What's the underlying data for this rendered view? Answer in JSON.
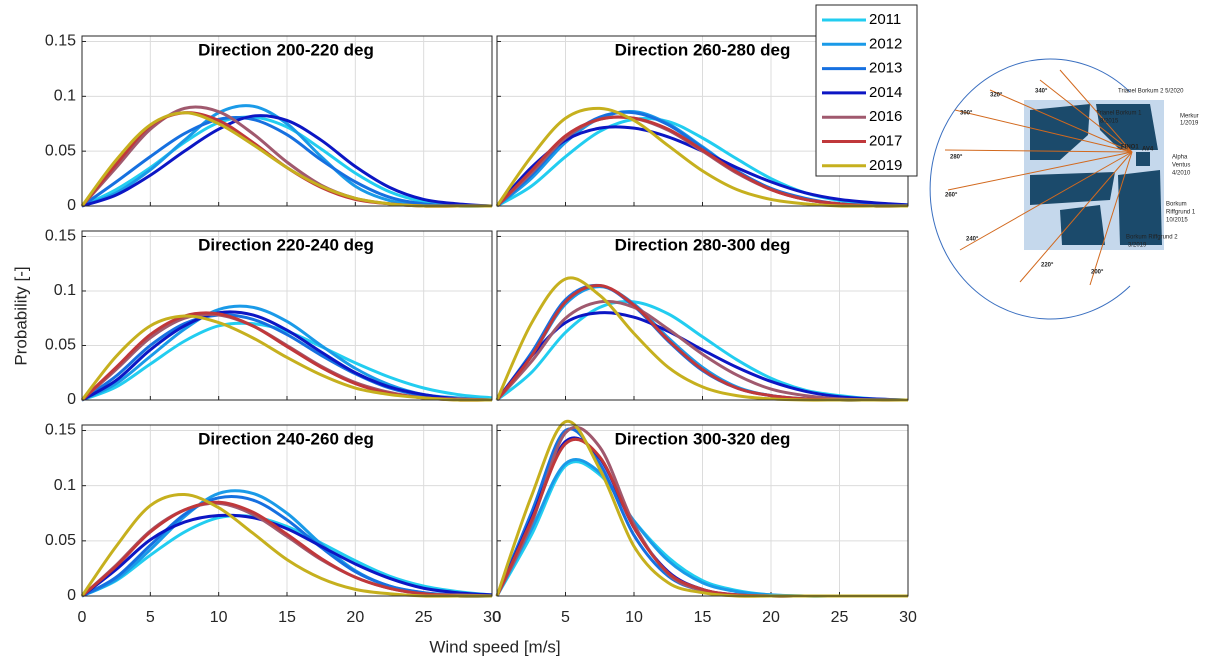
{
  "figure": {
    "ylabel": "Probability [-]",
    "xlabel": "Wind speed [m/s]"
  },
  "chart_data": [
    {
      "type": "line",
      "title": "Direction 200-220 deg",
      "x": [
        0,
        2.5,
        5,
        7.5,
        10,
        12.5,
        15,
        17.5,
        20,
        22.5,
        25,
        27.5,
        30
      ],
      "xlim": [
        0,
        30
      ],
      "xticks": [
        0,
        5,
        10,
        15,
        20,
        25,
        30
      ],
      "ylim": [
        0,
        0.155
      ],
      "yticks": [
        0,
        0.05,
        0.1,
        0.15
      ],
      "grid": true,
      "series": [
        {
          "name": "2011",
          "color": "#22cdf0",
          "values": [
            0,
            0.015,
            0.035,
            0.058,
            0.076,
            0.081,
            0.072,
            0.052,
            0.03,
            0.013,
            0.004,
            0.001,
            0
          ]
        },
        {
          "name": "2012",
          "color": "#1a9ae8",
          "values": [
            0,
            0.012,
            0.033,
            0.06,
            0.085,
            0.091,
            0.075,
            0.045,
            0.018,
            0.005,
            0.001,
            0,
            0
          ]
        },
        {
          "name": "2013",
          "color": "#1670e0",
          "values": [
            0,
            0.022,
            0.045,
            0.066,
            0.079,
            0.079,
            0.065,
            0.042,
            0.022,
            0.008,
            0.002,
            0,
            0
          ]
        },
        {
          "name": "2014",
          "color": "#0c16c4",
          "values": [
            0,
            0.01,
            0.028,
            0.05,
            0.07,
            0.082,
            0.078,
            0.06,
            0.036,
            0.017,
            0.006,
            0.002,
            0
          ]
        },
        {
          "name": "2016",
          "color": "#a0596e",
          "values": [
            0,
            0.035,
            0.07,
            0.089,
            0.086,
            0.066,
            0.04,
            0.019,
            0.007,
            0.002,
            0,
            0,
            0
          ]
        },
        {
          "name": "2017",
          "color": "#c0383b",
          "values": [
            0,
            0.038,
            0.073,
            0.085,
            0.078,
            0.058,
            0.035,
            0.017,
            0.006,
            0.002,
            0,
            0,
            0
          ]
        },
        {
          "name": "2019",
          "color": "#c6b01e",
          "values": [
            0,
            0.042,
            0.074,
            0.085,
            0.075,
            0.056,
            0.035,
            0.018,
            0.007,
            0.002,
            0,
            0,
            0
          ]
        }
      ]
    },
    {
      "type": "line",
      "title": "Direction 260-280 deg",
      "x": [
        0,
        2.5,
        5,
        7.5,
        10,
        12.5,
        15,
        17.5,
        20,
        22.5,
        25,
        27.5,
        30
      ],
      "xlim": [
        0,
        30
      ],
      "xticks": [
        0,
        5,
        10,
        15,
        20,
        25,
        30
      ],
      "ylim": [
        0,
        0.155
      ],
      "yticks": [
        0,
        0.05,
        0.1,
        0.15
      ],
      "grid": true,
      "series": [
        {
          "name": "2011",
          "color": "#22cdf0",
          "values": [
            0,
            0.018,
            0.045,
            0.068,
            0.079,
            0.077,
            0.062,
            0.043,
            0.025,
            0.012,
            0.005,
            0.002,
            0.001
          ]
        },
        {
          "name": "2012",
          "color": "#1a9ae8",
          "values": [
            0,
            0.025,
            0.058,
            0.08,
            0.086,
            0.075,
            0.054,
            0.032,
            0.016,
            0.006,
            0.002,
            0,
            0
          ]
        },
        {
          "name": "2013",
          "color": "#1670e0",
          "values": [
            0,
            0.028,
            0.061,
            0.081,
            0.085,
            0.074,
            0.053,
            0.032,
            0.016,
            0.007,
            0.002,
            0.001,
            0
          ]
        },
        {
          "name": "2014",
          "color": "#0c16c4",
          "values": [
            0,
            0.035,
            0.06,
            0.071,
            0.071,
            0.063,
            0.05,
            0.035,
            0.022,
            0.012,
            0.006,
            0.003,
            0.001
          ]
        },
        {
          "name": "2016",
          "color": "#a0596e",
          "values": [
            0,
            0.03,
            0.062,
            0.079,
            0.08,
            0.069,
            0.05,
            0.03,
            0.015,
            0.006,
            0.002,
            0,
            0
          ]
        },
        {
          "name": "2017",
          "color": "#c0383b",
          "values": [
            0,
            0.032,
            0.064,
            0.079,
            0.08,
            0.07,
            0.051,
            0.031,
            0.015,
            0.006,
            0.002,
            0,
            0
          ]
        },
        {
          "name": "2019",
          "color": "#c6b01e",
          "values": [
            0,
            0.045,
            0.08,
            0.089,
            0.078,
            0.055,
            0.032,
            0.015,
            0.006,
            0.002,
            0,
            0,
            0
          ]
        }
      ]
    },
    {
      "type": "line",
      "title": "Direction 220-240 deg",
      "x": [
        0,
        2.5,
        5,
        7.5,
        10,
        12.5,
        15,
        17.5,
        20,
        22.5,
        25,
        27.5,
        30
      ],
      "xlim": [
        0,
        30
      ],
      "xticks": [
        0,
        5,
        10,
        15,
        20,
        25,
        30
      ],
      "ylim": [
        0,
        0.155
      ],
      "yticks": [
        0,
        0.05,
        0.1,
        0.15
      ],
      "grid": true,
      "series": [
        {
          "name": "2011",
          "color": "#22cdf0",
          "values": [
            0,
            0.012,
            0.033,
            0.054,
            0.068,
            0.07,
            0.063,
            0.049,
            0.034,
            0.021,
            0.011,
            0.005,
            0.002
          ]
        },
        {
          "name": "2012",
          "color": "#1a9ae8",
          "values": [
            0,
            0.015,
            0.04,
            0.065,
            0.083,
            0.085,
            0.072,
            0.05,
            0.029,
            0.014,
            0.005,
            0.002,
            0
          ]
        },
        {
          "name": "2013",
          "color": "#1670e0",
          "values": [
            0,
            0.022,
            0.05,
            0.07,
            0.078,
            0.074,
            0.06,
            0.041,
            0.024,
            0.011,
            0.004,
            0.001,
            0
          ]
        },
        {
          "name": "2014",
          "color": "#0c16c4",
          "values": [
            0,
            0.018,
            0.046,
            0.068,
            0.08,
            0.078,
            0.064,
            0.044,
            0.025,
            0.012,
            0.005,
            0.001,
            0
          ]
        },
        {
          "name": "2016",
          "color": "#a0596e",
          "values": [
            0,
            0.028,
            0.057,
            0.075,
            0.078,
            0.068,
            0.05,
            0.031,
            0.016,
            0.007,
            0.002,
            0.001,
            0
          ]
        },
        {
          "name": "2017",
          "color": "#c0383b",
          "values": [
            0,
            0.03,
            0.06,
            0.077,
            0.079,
            0.068,
            0.049,
            0.03,
            0.015,
            0.006,
            0.002,
            0,
            0
          ]
        },
        {
          "name": "2019",
          "color": "#c6b01e",
          "values": [
            0,
            0.04,
            0.068,
            0.077,
            0.071,
            0.057,
            0.039,
            0.023,
            0.011,
            0.005,
            0.002,
            0,
            0
          ]
        }
      ]
    },
    {
      "type": "line",
      "title": "Direction 280-300 deg",
      "x": [
        0,
        2.5,
        5,
        7.5,
        10,
        12.5,
        15,
        17.5,
        20,
        22.5,
        25,
        27.5,
        30
      ],
      "xlim": [
        0,
        30
      ],
      "xticks": [
        0,
        5,
        10,
        15,
        20,
        25,
        30
      ],
      "ylim": [
        0,
        0.155
      ],
      "yticks": [
        0,
        0.05,
        0.1,
        0.15
      ],
      "grid": true,
      "series": [
        {
          "name": "2011",
          "color": "#22cdf0",
          "values": [
            0,
            0.025,
            0.062,
            0.085,
            0.09,
            0.079,
            0.058,
            0.037,
            0.02,
            0.009,
            0.004,
            0.001,
            0
          ]
        },
        {
          "name": "2012",
          "color": "#1a9ae8",
          "values": [
            0,
            0.04,
            0.088,
            0.104,
            0.088,
            0.057,
            0.03,
            0.012,
            0.004,
            0.001,
            0,
            0,
            0
          ]
        },
        {
          "name": "2013",
          "color": "#1670e0",
          "values": [
            0,
            0.043,
            0.092,
            0.105,
            0.086,
            0.054,
            0.027,
            0.011,
            0.004,
            0.001,
            0,
            0,
            0
          ]
        },
        {
          "name": "2014",
          "color": "#0c16c4",
          "values": [
            0,
            0.04,
            0.071,
            0.08,
            0.076,
            0.063,
            0.046,
            0.03,
            0.017,
            0.008,
            0.003,
            0.001,
            0
          ]
        },
        {
          "name": "2016",
          "color": "#a0596e",
          "values": [
            0,
            0.035,
            0.075,
            0.09,
            0.085,
            0.065,
            0.042,
            0.023,
            0.01,
            0.004,
            0.001,
            0,
            0
          ]
        },
        {
          "name": "2017",
          "color": "#c0383b",
          "values": [
            0,
            0.04,
            0.09,
            0.105,
            0.087,
            0.055,
            0.028,
            0.011,
            0.004,
            0.001,
            0,
            0,
            0
          ]
        },
        {
          "name": "2019",
          "color": "#c6b01e",
          "values": [
            0,
            0.07,
            0.111,
            0.096,
            0.061,
            0.03,
            0.012,
            0.004,
            0.001,
            0,
            0,
            0,
            0
          ]
        }
      ]
    },
    {
      "type": "line",
      "title": "Direction 240-260 deg",
      "x": [
        0,
        2.5,
        5,
        7.5,
        10,
        12.5,
        15,
        17.5,
        20,
        22.5,
        25,
        27.5,
        30
      ],
      "xlim": [
        0,
        30
      ],
      "xticks": [
        0,
        5,
        10,
        15,
        20,
        25,
        30
      ],
      "ylim": [
        0,
        0.155
      ],
      "yticks": [
        0,
        0.05,
        0.1,
        0.15
      ],
      "grid": true,
      "series": [
        {
          "name": "2011",
          "color": "#22cdf0",
          "values": [
            0,
            0.014,
            0.037,
            0.058,
            0.071,
            0.072,
            0.063,
            0.048,
            0.032,
            0.018,
            0.009,
            0.004,
            0.001
          ]
        },
        {
          "name": "2012",
          "color": "#1a9ae8",
          "values": [
            0,
            0.015,
            0.042,
            0.072,
            0.093,
            0.093,
            0.075,
            0.047,
            0.023,
            0.009,
            0.003,
            0.001,
            0
          ]
        },
        {
          "name": "2013",
          "color": "#1670e0",
          "values": [
            0,
            0.017,
            0.046,
            0.074,
            0.089,
            0.087,
            0.069,
            0.044,
            0.022,
            0.009,
            0.003,
            0,
            0
          ]
        },
        {
          "name": "2014",
          "color": "#0c16c4",
          "values": [
            0,
            0.024,
            0.051,
            0.067,
            0.073,
            0.071,
            0.061,
            0.045,
            0.029,
            0.016,
            0.007,
            0.003,
            0.001
          ]
        },
        {
          "name": "2016",
          "color": "#a0596e",
          "values": [
            0,
            0.028,
            0.059,
            0.078,
            0.084,
            0.074,
            0.054,
            0.033,
            0.017,
            0.007,
            0.002,
            0.001,
            0
          ]
        },
        {
          "name": "2017",
          "color": "#c0383b",
          "values": [
            0,
            0.027,
            0.058,
            0.078,
            0.085,
            0.076,
            0.056,
            0.034,
            0.017,
            0.007,
            0.002,
            0,
            0
          ]
        },
        {
          "name": "2019",
          "color": "#c6b01e",
          "values": [
            0,
            0.045,
            0.082,
            0.092,
            0.08,
            0.057,
            0.033,
            0.016,
            0.006,
            0.002,
            0,
            0,
            0
          ]
        }
      ]
    },
    {
      "type": "line",
      "title": "Direction 300-320 deg",
      "x": [
        0,
        2.5,
        5,
        7.5,
        10,
        12.5,
        15,
        17.5,
        20,
        22.5,
        25,
        27.5,
        30
      ],
      "xlim": [
        0,
        30
      ],
      "xticks": [
        0,
        5,
        10,
        15,
        20,
        25,
        30
      ],
      "ylim": [
        0,
        0.155
      ],
      "yticks": [
        0,
        0.05,
        0.1,
        0.15
      ],
      "grid": true,
      "series": [
        {
          "name": "2011",
          "color": "#22cdf0",
          "values": [
            0,
            0.055,
            0.118,
            0.11,
            0.068,
            0.035,
            0.014,
            0.005,
            0.001,
            0,
            0,
            0,
            0
          ]
        },
        {
          "name": "2012",
          "color": "#1a9ae8",
          "values": [
            0,
            0.06,
            0.12,
            0.112,
            0.068,
            0.032,
            0.012,
            0.004,
            0.001,
            0,
            0,
            0,
            0
          ]
        },
        {
          "name": "2013",
          "color": "#1670e0",
          "values": [
            0,
            0.075,
            0.15,
            0.12,
            0.055,
            0.018,
            0.005,
            0.001,
            0,
            0,
            0,
            0,
            0
          ]
        },
        {
          "name": "2014",
          "color": "#0c16c4",
          "values": [
            0,
            0.07,
            0.14,
            0.125,
            0.062,
            0.022,
            0.006,
            0.001,
            0,
            0,
            0,
            0,
            0
          ]
        },
        {
          "name": "2016",
          "color": "#a0596e",
          "values": [
            0,
            0.065,
            0.148,
            0.135,
            0.065,
            0.02,
            0.005,
            0.001,
            0,
            0,
            0,
            0,
            0
          ]
        },
        {
          "name": "2017",
          "color": "#c0383b",
          "values": [
            0,
            0.068,
            0.138,
            0.126,
            0.062,
            0.021,
            0.006,
            0.001,
            0,
            0,
            0,
            0,
            0
          ]
        },
        {
          "name": "2019",
          "color": "#c6b01e",
          "values": [
            0,
            0.09,
            0.158,
            0.115,
            0.045,
            0.012,
            0.003,
            0,
            0,
            0,
            0,
            0,
            0
          ]
        }
      ]
    }
  ],
  "map": {
    "labels": [
      "320°",
      "340°",
      "300°",
      "280°",
      "260°",
      "240°",
      "220°",
      "200°",
      "Trianel Borkum 1",
      "8/2015",
      "Trianel Borkum 2 5/2020",
      "Merkur",
      "1/2019",
      "Alpha",
      "Ventus",
      "4/2010",
      "Borkum",
      "Riffgrund 1",
      "10/2015",
      "Borkum Riffgrund 2",
      "3/2019",
      "FINO1",
      "AV4"
    ]
  }
}
